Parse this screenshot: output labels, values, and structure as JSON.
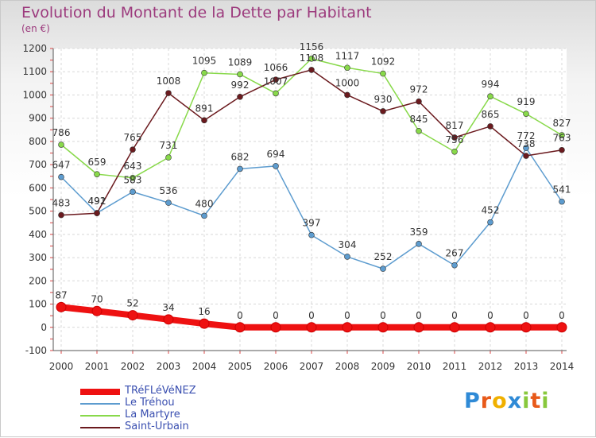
{
  "chart_data": {
    "type": "line",
    "title": "Evolution du Montant de la Dette par Habitant",
    "subtitle": "(en €)",
    "x": [
      "2000",
      "2001",
      "2002",
      "2003",
      "2004",
      "2005",
      "2006",
      "2007",
      "2008",
      "2009",
      "2010",
      "2011",
      "2012",
      "2013",
      "2014"
    ],
    "ylim": [
      -100,
      1200
    ],
    "yticks": [
      -100,
      0,
      100,
      200,
      300,
      400,
      500,
      600,
      700,
      800,
      900,
      1000,
      1100,
      1200
    ],
    "grid": true,
    "legend_position": "bottom-left",
    "series": [
      {
        "name": "TRéFLéVéNEZ",
        "color": "#ee1111",
        "thick": true,
        "values": [
          87,
          70,
          52,
          34,
          16,
          0,
          0,
          0,
          0,
          0,
          0,
          0,
          0,
          0,
          0
        ]
      },
      {
        "name": "Le Tréhou",
        "color": "#5d9ccf",
        "thick": false,
        "values": [
          647,
          492,
          583,
          536,
          480,
          682,
          694,
          397,
          304,
          252,
          359,
          267,
          452,
          772,
          541
        ]
      },
      {
        "name": "La Martyre",
        "color": "#88d94a",
        "thick": false,
        "values": [
          786,
          659,
          643,
          731,
          1095,
          1089,
          1007,
          1156,
          1117,
          1092,
          845,
          756,
          994,
          919,
          827
        ]
      },
      {
        "name": "Saint-Urbain",
        "color": "#6b1a1e",
        "thick": false,
        "values": [
          483,
          491,
          765,
          1008,
          891,
          992,
          1066,
          1108,
          1000,
          930,
          972,
          817,
          865,
          738,
          763
        ]
      }
    ]
  },
  "logo": {
    "letters": [
      {
        "ch": "P",
        "color": "#2f8ad6"
      },
      {
        "ch": "r",
        "color": "#e85a1a"
      },
      {
        "ch": "o",
        "color": "#f0b000"
      },
      {
        "ch": "x",
        "color": "#2f8ad6"
      },
      {
        "ch": "i",
        "color": "#88c83c"
      },
      {
        "ch": "t",
        "color": "#e85a1a"
      },
      {
        "ch": "i",
        "color": "#88c83c"
      }
    ]
  }
}
